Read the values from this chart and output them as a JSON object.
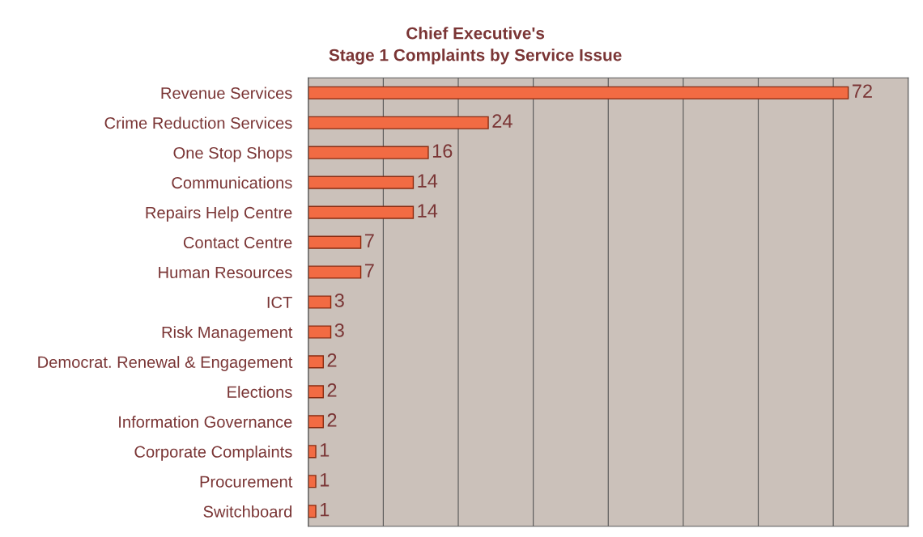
{
  "chart_data": {
    "type": "bar",
    "orientation": "horizontal",
    "title": "Chief Executive's\nStage 1 Complaints by Service Issue",
    "categories": [
      "Revenue Services",
      "Crime Reduction Services",
      "One Stop Shops",
      "Communications",
      "Repairs Help Centre",
      "Contact Centre",
      "Human Resources",
      "ICT",
      "Risk Management",
      "Democrat. Renewal & Engagement",
      "Elections",
      "Information Governance",
      "Corporate Complaints",
      "Procurement",
      "Switchboard"
    ],
    "values": [
      72,
      24,
      16,
      14,
      14,
      7,
      7,
      3,
      3,
      2,
      2,
      2,
      1,
      1,
      1
    ],
    "color": "#f26b43",
    "data_labels": true,
    "grid": "x",
    "tick_labels": "y",
    "xlim": [
      0,
      80
    ],
    "xticks": [
      {
        "value": 0,
        "label": null
      },
      {
        "value": 10,
        "label": null
      },
      {
        "value": 20,
        "label": null
      },
      {
        "value": 30,
        "label": null
      },
      {
        "value": 40,
        "label": null
      },
      {
        "value": 50,
        "label": null
      },
      {
        "value": 60,
        "label": null
      },
      {
        "value": 70,
        "label": null
      },
      {
        "value": 80,
        "label": null
      }
    ]
  }
}
